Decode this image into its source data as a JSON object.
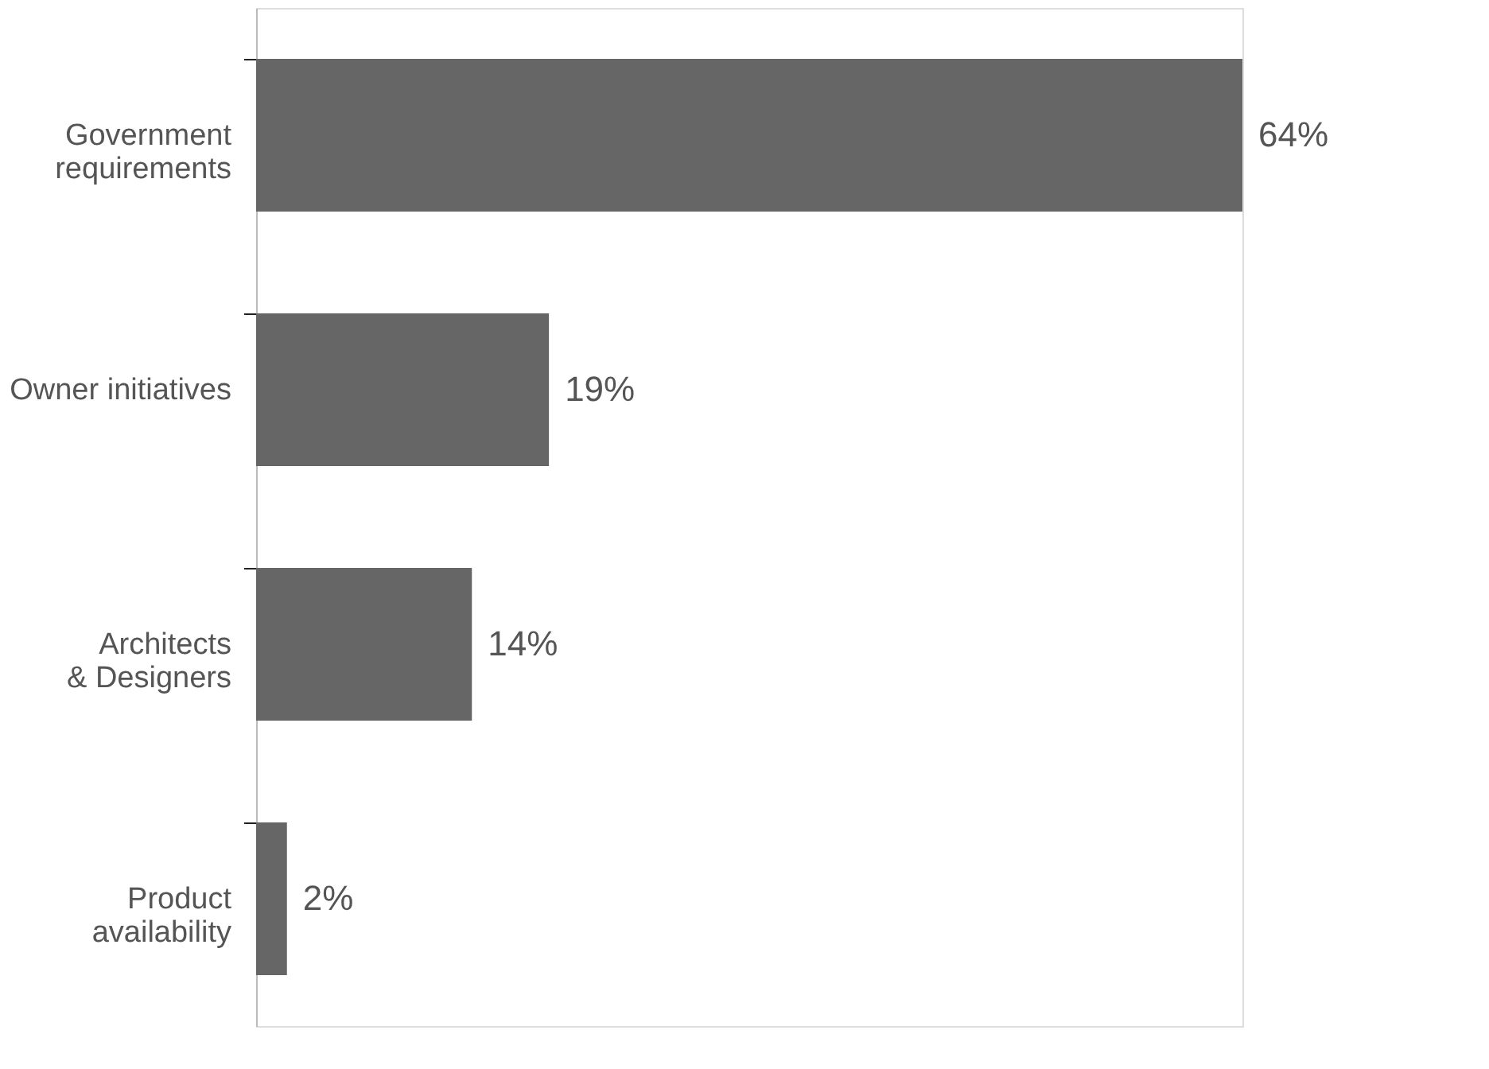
{
  "chart_data": {
    "type": "bar",
    "orientation": "horizontal",
    "categories": [
      "Government requirements",
      "Owner initiatives",
      "Architects & Designers",
      "Product availability"
    ],
    "values": [
      64,
      19,
      14,
      2
    ],
    "value_labels": [
      "64%",
      "19%",
      "14%",
      "2%"
    ],
    "color": "#666666"
  }
}
